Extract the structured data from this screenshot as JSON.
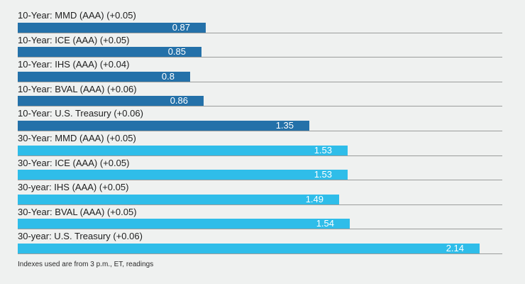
{
  "chart_data": {
    "type": "bar",
    "orientation": "horizontal",
    "title": "",
    "xlim": [
      0,
      2.25
    ],
    "grid": "horizontal row separator lines, no axis labels",
    "value_label_position": "inside-right",
    "legend": "none",
    "series_colors": {
      "ten_year": "#2471a9",
      "thirty_year": "#2fbde9"
    },
    "gridline_color": "#9b9d9c",
    "background_color": "#eff1f0",
    "bars": [
      {
        "label": "10-Year: MMD (AAA) (+0.05)",
        "value": 0.87,
        "display": "0.87",
        "group": "ten_year"
      },
      {
        "label": "10-Year: ICE (AAA) (+0.05)",
        "value": 0.85,
        "display": "0.85",
        "group": "ten_year"
      },
      {
        "label": "10-Year: IHS (AAA) (+0.04)",
        "value": 0.8,
        "display": "0.8",
        "group": "ten_year"
      },
      {
        "label": "10-Year: BVAL (AAA) (+0.06)",
        "value": 0.86,
        "display": "0.86",
        "group": "ten_year"
      },
      {
        "label": "10-Year: U.S. Treasury (+0.06)",
        "value": 1.35,
        "display": "1.35",
        "group": "ten_year"
      },
      {
        "label": "30-Year: MMD (AAA) (+0.05)",
        "value": 1.53,
        "display": "1.53",
        "group": "thirty_year"
      },
      {
        "label": "30-Year: ICE (AAA) (+0.05)",
        "value": 1.53,
        "display": "1.53",
        "group": "thirty_year"
      },
      {
        "label": "30-year: IHS (AAA) (+0.05)",
        "value": 1.49,
        "display": "1.49",
        "group": "thirty_year"
      },
      {
        "label": "30-Year: BVAL (AAA) (+0.05)",
        "value": 1.54,
        "display": "1.54",
        "group": "thirty_year"
      },
      {
        "label": "30-year: U.S. Treasury (+0.06)",
        "value": 2.14,
        "display": "2.14",
        "group": "thirty_year"
      }
    ],
    "footnote": "Indexes used are from 3 p.m., ET, readings"
  }
}
